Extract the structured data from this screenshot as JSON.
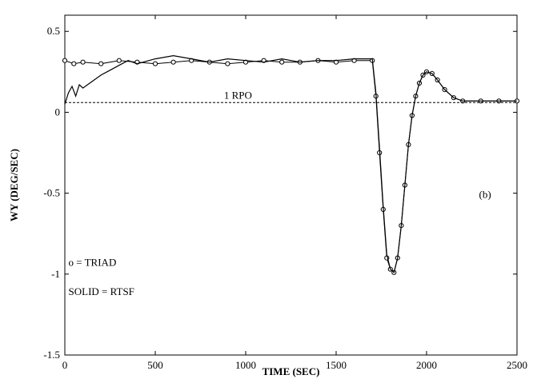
{
  "chart_data": {
    "type": "line",
    "title": "",
    "xlabel": "TIME (SEC)",
    "ylabel": "WY (DEG/SEC)",
    "xlim": [
      0,
      2500
    ],
    "ylim": [
      -1.5,
      0.6
    ],
    "x_ticks": [
      0,
      500,
      1000,
      1500,
      2000,
      2500
    ],
    "x_tick_labels": [
      "0",
      "500",
      "1000",
      "1500",
      "2000",
      "2500"
    ],
    "y_ticks": [
      0.5,
      0,
      -0.5,
      -1,
      -1.5
    ],
    "y_tick_labels": [
      "0.5",
      "0",
      "-0.5",
      "-1",
      "-1.5"
    ],
    "grid": false,
    "series": [
      {
        "name": "TRIAD",
        "style": "circles",
        "x": [
          0,
          50,
          100,
          200,
          300,
          400,
          500,
          600,
          700,
          800,
          900,
          1000,
          1100,
          1200,
          1300,
          1400,
          1500,
          1600,
          1700,
          1720,
          1740,
          1760,
          1780,
          1800,
          1820,
          1840,
          1860,
          1880,
          1900,
          1920,
          1940,
          1960,
          1980,
          2000,
          2030,
          2060,
          2100,
          2150,
          2200,
          2300,
          2400,
          2500
        ],
        "y": [
          0.32,
          0.3,
          0.31,
          0.3,
          0.32,
          0.31,
          0.3,
          0.31,
          0.32,
          0.31,
          0.3,
          0.31,
          0.32,
          0.31,
          0.31,
          0.32,
          0.31,
          0.32,
          0.32,
          0.1,
          -0.25,
          -0.6,
          -0.9,
          -0.97,
          -0.99,
          -0.9,
          -0.7,
          -0.45,
          -0.2,
          -0.02,
          0.1,
          0.18,
          0.23,
          0.25,
          0.24,
          0.2,
          0.14,
          0.09,
          0.07,
          0.07,
          0.07,
          0.07
        ]
      },
      {
        "name": "RTSF",
        "style": "solid",
        "x": [
          0,
          20,
          40,
          60,
          80,
          100,
          150,
          200,
          250,
          300,
          350,
          400,
          500,
          600,
          700,
          800,
          900,
          1000,
          1100,
          1200,
          1300,
          1400,
          1500,
          1600,
          1700,
          1720,
          1740,
          1760,
          1780,
          1800,
          1820,
          1840,
          1860,
          1880,
          1900,
          1920,
          1940,
          1960,
          1980,
          2000,
          2030,
          2060,
          2100,
          2150,
          2200,
          2300,
          2400,
          2500
        ],
        "y": [
          0.05,
          0.12,
          0.16,
          0.1,
          0.17,
          0.15,
          0.19,
          0.23,
          0.26,
          0.29,
          0.32,
          0.3,
          0.33,
          0.35,
          0.33,
          0.31,
          0.33,
          0.32,
          0.31,
          0.33,
          0.31,
          0.32,
          0.32,
          0.33,
          0.33,
          0.12,
          -0.22,
          -0.58,
          -0.88,
          -0.97,
          -0.99,
          -0.9,
          -0.7,
          -0.45,
          -0.2,
          -0.02,
          0.1,
          0.18,
          0.23,
          0.25,
          0.24,
          0.2,
          0.14,
          0.09,
          0.07,
          0.07,
          0.07,
          0.07
        ]
      },
      {
        "name": "1 RPO",
        "style": "dashed",
        "x": [
          0,
          2500
        ],
        "y": [
          0.06,
          0.06
        ]
      }
    ],
    "annotations": {
      "rpo_label": "1 RPO",
      "panel_label": "(b)",
      "legend_triad": "o = TRIAD",
      "legend_rtsf": "SOLID = RTSF"
    }
  }
}
